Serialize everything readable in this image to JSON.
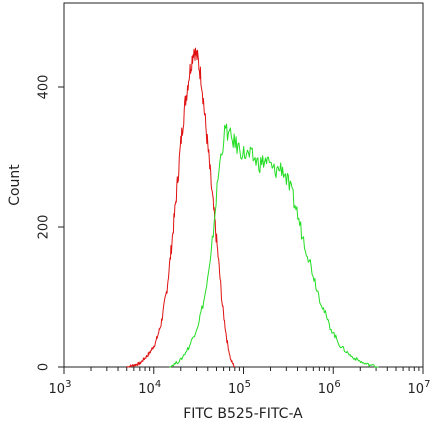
{
  "chart_data": {
    "type": "line",
    "title": "",
    "xlabel": "FITC B525-FITC-A",
    "ylabel": "Count",
    "x_scale": "log",
    "xlim": [
      1000,
      10000000
    ],
    "ylim": [
      0,
      520
    ],
    "x_ticks": [
      {
        "value": 1000,
        "base": "10",
        "exp": "3"
      },
      {
        "value": 10000,
        "base": "10",
        "exp": "4"
      },
      {
        "value": 100000,
        "base": "10",
        "exp": "5"
      },
      {
        "value": 1000000,
        "base": "10",
        "exp": "6"
      },
      {
        "value": 10000000,
        "base": "10",
        "exp": "7"
      }
    ],
    "y_ticks": [
      {
        "value": 0,
        "label": "0"
      },
      {
        "value": 200,
        "label": "200"
      },
      {
        "value": 400,
        "label": "400"
      }
    ],
    "grid": false,
    "legend": "none",
    "series": [
      {
        "color": "#e01010",
        "x": [
          5000,
          7000,
          9000,
          10500,
          12000,
          14000,
          16000,
          18000,
          20000,
          22500,
          25000,
          28000,
          31000,
          34000,
          37000,
          41000,
          46000,
          52000,
          58000,
          65000,
          72000,
          80000
        ],
        "y": [
          0,
          5,
          20,
          35,
          60,
          110,
          180,
          250,
          320,
          380,
          420,
          455,
          440,
          410,
          360,
          300,
          230,
          160,
          90,
          40,
          10,
          0
        ]
      },
      {
        "color": "#22dd22",
        "x": [
          15000,
          20000,
          25000,
          31000,
          37000,
          43000,
          48000,
          53000,
          58000,
          63000,
          70000,
          80000,
          100000,
          125000,
          150000,
          180000,
          220000,
          270000,
          320000,
          380000,
          450000,
          550000,
          700000,
          900000,
          1200000,
          1600000,
          2200000,
          3200000
        ],
        "y": [
          0,
          10,
          30,
          60,
          100,
          150,
          220,
          280,
          315,
          340,
          330,
          320,
          305,
          300,
          290,
          295,
          280,
          285,
          260,
          230,
          190,
          150,
          100,
          60,
          30,
          15,
          5,
          0
        ]
      }
    ]
  }
}
